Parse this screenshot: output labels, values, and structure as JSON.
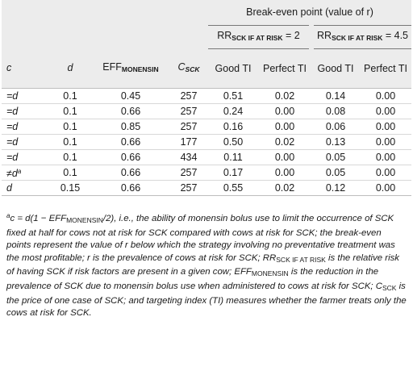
{
  "table": {
    "group_header": "Break-even point (value of r)",
    "rr_groups": [
      {
        "prefix": "RR",
        "sub": "SCK IF AT RISK",
        "suffix": " = 2"
      },
      {
        "prefix": "RR",
        "sub": "SCK IF AT RISK",
        "suffix": " = 4.5"
      }
    ],
    "columns": {
      "c": "c",
      "d": "d",
      "eff_prefix": "EFF",
      "eff_sub": "MONENSIN",
      "csck_prefix": "C",
      "csck_sub": "SCK",
      "good_ti": "Good TI",
      "perfect_ti": "Perfect TI"
    },
    "rows": [
      {
        "c": "=d",
        "c_sup": "",
        "d": "0.1",
        "eff": "0.45",
        "csck": "257",
        "good1": "0.51",
        "perf1": "0.02",
        "good2": "0.14",
        "perf2": "0.00"
      },
      {
        "c": "=d",
        "c_sup": "",
        "d": "0.1",
        "eff": "0.66",
        "csck": "257",
        "good1": "0.24",
        "perf1": "0.00",
        "good2": "0.08",
        "perf2": "0.00"
      },
      {
        "c": "=d",
        "c_sup": "",
        "d": "0.1",
        "eff": "0.85",
        "csck": "257",
        "good1": "0.16",
        "perf1": "0.00",
        "good2": "0.06",
        "perf2": "0.00"
      },
      {
        "c": "=d",
        "c_sup": "",
        "d": "0.1",
        "eff": "0.66",
        "csck": "177",
        "good1": "0.50",
        "perf1": "0.02",
        "good2": "0.13",
        "perf2": "0.00"
      },
      {
        "c": "=d",
        "c_sup": "",
        "d": "0.1",
        "eff": "0.66",
        "csck": "434",
        "good1": "0.11",
        "perf1": "0.00",
        "good2": "0.05",
        "perf2": "0.00"
      },
      {
        "c": "≠d",
        "c_sup": "a",
        "d": "0.1",
        "eff": "0.66",
        "csck": "257",
        "good1": "0.17",
        "perf1": "0.00",
        "good2": "0.05",
        "perf2": "0.00"
      },
      {
        "c": "d",
        "c_sup": "",
        "d": "0.15",
        "eff": "0.66",
        "csck": "257",
        "good1": "0.55",
        "perf1": "0.02",
        "good2": "0.12",
        "perf2": "0.00"
      }
    ]
  },
  "footnote": {
    "marker": "a",
    "p1": "c = d(1 − EFF",
    "p1_sub": "MONENSIN",
    "p2": "/2), i.e., the ability of monensin bolus use to limit the occurrence of SCK fixed at half for cows not at risk for SCK compared with cows at risk for SCK; the break-even points represent the value of r below which the strategy involving no preventative treatment was the most profitable; r is the prevalence of cows at risk for SCK; RR",
    "p2_sub": "SCK IF AT RISK",
    "p3": " is the relative risk of having SCK if risk factors are present in a given cow; EFF",
    "p3_sub": "MONENSIN",
    "p4": " is the reduction in the prevalence of SCK due to monensin bolus use when administered to cows at risk for SCK; C",
    "p4_sub": "SCK",
    "p5": " is the price of one case of SCK; and targeting index (TI) measures whether the farmer treats only the cows at risk for SCK."
  }
}
